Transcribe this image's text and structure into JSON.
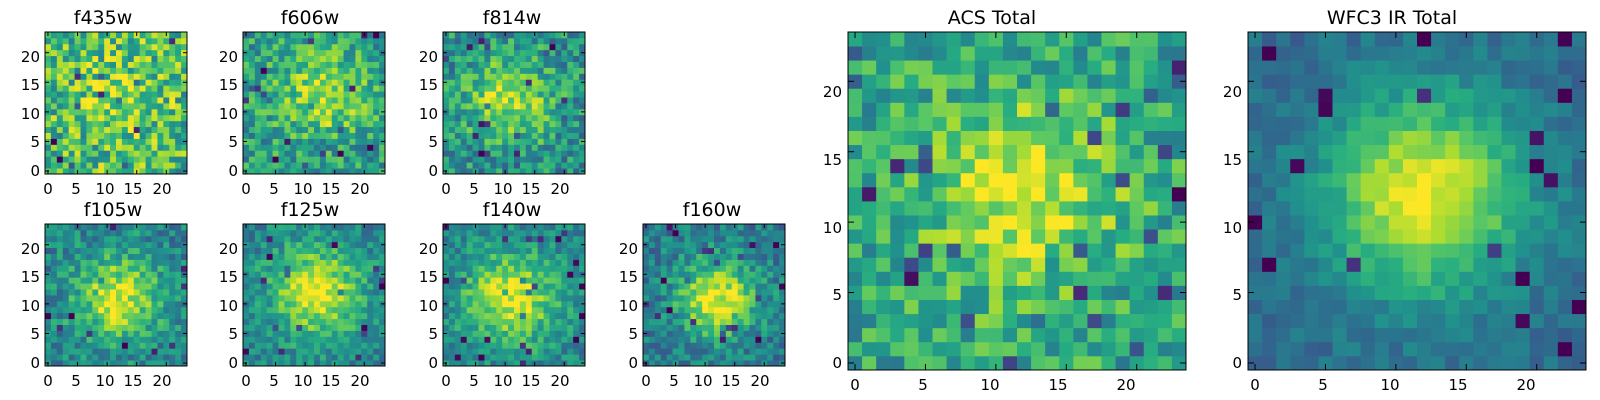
{
  "chart_data": [
    {
      "type": "heatmap",
      "title": "f435w",
      "xticks": [
        "0",
        "5",
        "10",
        "15",
        "20"
      ],
      "yticks": [
        "0",
        "5",
        "10",
        "15",
        "20"
      ],
      "grid": "24x24 pixel image",
      "xlim": [
        0,
        24
      ],
      "ylim": [
        0,
        24
      ],
      "colormap": "viridis",
      "description_values": "noise-dominated; flat yellow-green with scattered dark pixels",
      "peak": [
        12,
        12
      ],
      "sigma": 5,
      "peak_level": 0.15,
      "base_level": 0.68,
      "noise": 0.28
    },
    {
      "type": "heatmap",
      "title": "f606w",
      "xticks": [
        "0",
        "5",
        "10",
        "15",
        "20"
      ],
      "yticks": [
        "0",
        "5",
        "10",
        "15",
        "20"
      ],
      "xlim": [
        0,
        24
      ],
      "ylim": [
        0,
        24
      ],
      "colormap": "viridis",
      "peak": [
        13,
        13
      ],
      "sigma": 5,
      "peak_level": 0.35,
      "base_level": 0.55,
      "noise": 0.22
    },
    {
      "type": "heatmap",
      "title": "f814w",
      "xticks": [
        "0",
        "5",
        "10",
        "15",
        "20"
      ],
      "yticks": [
        "0",
        "5",
        "10",
        "15",
        "20"
      ],
      "xlim": [
        0,
        24
      ],
      "ylim": [
        0,
        24
      ],
      "colormap": "viridis",
      "peak": [
        11,
        12
      ],
      "sigma": 5,
      "peak_level": 0.4,
      "base_level": 0.5,
      "noise": 0.22
    },
    {
      "type": "heatmap",
      "title": "f105w",
      "xticks": [
        "0",
        "5",
        "10",
        "15",
        "20"
      ],
      "yticks": [
        "0",
        "5",
        "10",
        "15",
        "20"
      ],
      "xlim": [
        0,
        24
      ],
      "ylim": [
        0,
        24
      ],
      "colormap": "viridis",
      "peak": [
        12,
        11
      ],
      "sigma": 5,
      "peak_level": 0.5,
      "base_level": 0.45,
      "noise": 0.18
    },
    {
      "type": "heatmap",
      "title": "f125w",
      "xticks": [
        "0",
        "5",
        "10",
        "15",
        "20"
      ],
      "yticks": [
        "0",
        "5",
        "10",
        "15",
        "20"
      ],
      "xlim": [
        0,
        24
      ],
      "ylim": [
        0,
        24
      ],
      "colormap": "viridis",
      "peak": [
        12,
        12
      ],
      "sigma": 5.5,
      "peak_level": 0.5,
      "base_level": 0.45,
      "noise": 0.16
    },
    {
      "type": "heatmap",
      "title": "f140w",
      "xticks": [
        "0",
        "5",
        "10",
        "15",
        "20"
      ],
      "yticks": [
        "0",
        "5",
        "10",
        "15",
        "20"
      ],
      "xlim": [
        0,
        24
      ],
      "ylim": [
        0,
        24
      ],
      "colormap": "viridis",
      "peak": [
        11,
        11
      ],
      "sigma": 5.5,
      "peak_level": 0.5,
      "base_level": 0.45,
      "noise": 0.16
    },
    {
      "type": "heatmap",
      "title": "f160w",
      "xticks": [
        "0",
        "5",
        "10",
        "15",
        "20"
      ],
      "yticks": [
        "0",
        "5",
        "10",
        "15",
        "20"
      ],
      "xlim": [
        0,
        24
      ],
      "ylim": [
        0,
        24
      ],
      "colormap": "viridis",
      "peak": [
        12,
        11
      ],
      "sigma": 4.5,
      "peak_level": 0.55,
      "base_level": 0.42,
      "noise": 0.17
    },
    {
      "type": "heatmap",
      "title": "ACS Total",
      "xticks": [
        "0",
        "5",
        "10",
        "15",
        "20"
      ],
      "yticks": [
        "0",
        "5",
        "10",
        "15",
        "20"
      ],
      "xlim": [
        0,
        24
      ],
      "ylim": [
        0,
        24
      ],
      "colormap": "viridis",
      "peak": [
        12,
        12
      ],
      "sigma": 5,
      "peak_level": 0.35,
      "base_level": 0.58,
      "noise": 0.2
    },
    {
      "type": "heatmap",
      "title": "WFC3 IR Total",
      "xticks": [
        "0",
        "5",
        "10",
        "15",
        "20"
      ],
      "yticks": [
        "0",
        "5",
        "10",
        "15",
        "20"
      ],
      "xlim": [
        0,
        24
      ],
      "ylim": [
        0,
        24
      ],
      "colormap": "viridis",
      "peak": [
        12,
        12
      ],
      "sigma": 5,
      "peak_level": 0.62,
      "base_level": 0.35,
      "noise": 0.08
    }
  ]
}
